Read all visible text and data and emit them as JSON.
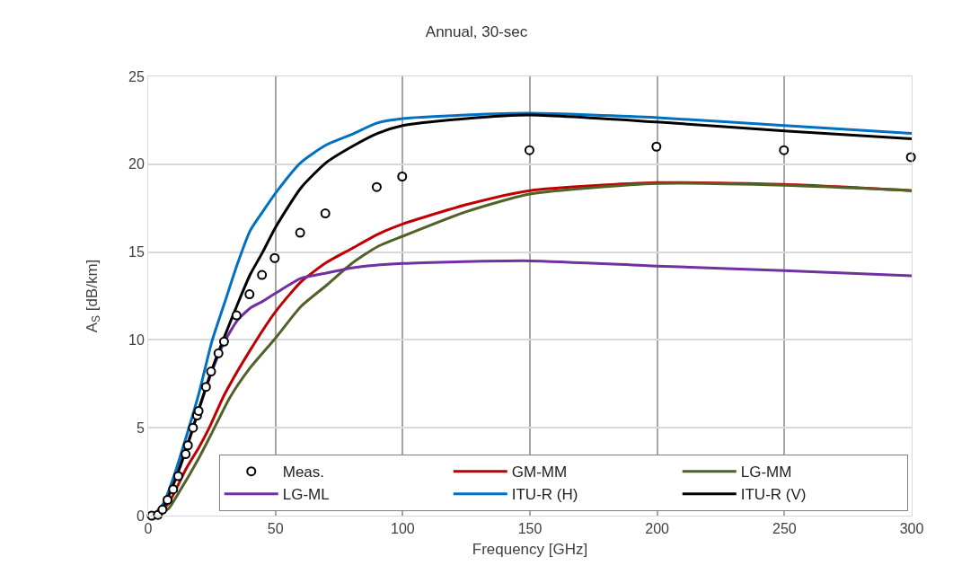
{
  "chart_data": {
    "type": "line",
    "title": "Annual, 30-sec",
    "xlabel": "Frequency [GHz]",
    "ylabel": "A$_{S}$ [dB/km]",
    "xlim": [
      0,
      300
    ],
    "ylim": [
      0,
      25
    ],
    "xticks": [
      0,
      50,
      100,
      150,
      200,
      250,
      300
    ],
    "yticks": [
      0,
      5,
      10,
      15,
      20,
      25
    ],
    "grid": true,
    "legend": "bottom right",
    "series": [
      {
        "name": "Meas.",
        "type": "scatter",
        "marker": "circle",
        "color": "#000000",
        "x": [
          1.4,
          3.8,
          5.6,
          7.6,
          9.8,
          11.8,
          14.7,
          15.6,
          17.6,
          19.2,
          19.8,
          22.7,
          24.7,
          27.6,
          29.8,
          34.7,
          39.8,
          44.7,
          49.7,
          59.7,
          69.6,
          89.8,
          99.8,
          149.8,
          199.7,
          249.8,
          299.7
        ],
        "values": [
          0,
          0.04,
          0.34,
          0.9,
          1.5,
          2.25,
          3.5,
          4.0,
          5.0,
          5.7,
          5.96,
          7.33,
          8.2,
          9.24,
          9.9,
          11.4,
          12.6,
          13.7,
          14.66,
          16.1,
          17.2,
          18.7,
          19.3,
          20.8,
          21.0,
          20.8,
          20.4
        ]
      },
      {
        "name": "GM-MM",
        "color": "#c00000",
        "x": [
          3,
          8,
          15,
          20,
          24,
          30,
          40,
          50,
          60,
          70,
          80,
          90,
          100,
          125,
          150,
          200,
          250,
          300
        ],
        "values": [
          0,
          0.7,
          2.7,
          3.9,
          5,
          6.9,
          9.4,
          11.6,
          13.3,
          14.4,
          15.2,
          16,
          16.6,
          17.7,
          18.5,
          18.95,
          18.85,
          18.5
        ]
      },
      {
        "name": "LG-MM",
        "color": "#4f6228",
        "x": [
          3,
          8,
          12,
          20,
          25,
          32,
          40,
          50,
          60,
          70,
          80,
          90,
          100,
          125,
          150,
          200,
          250,
          300
        ],
        "values": [
          0,
          0.4,
          1.3,
          3.3,
          4.7,
          6.7,
          8.4,
          10.1,
          11.9,
          13.1,
          14.35,
          15.3,
          15.9,
          17.3,
          18.3,
          18.9,
          18.8,
          18.5
        ]
      },
      {
        "name": "LG-ML",
        "color": "#7030a0",
        "x": [
          10,
          15,
          20,
          25,
          30,
          35,
          40,
          45,
          50,
          60,
          70,
          80,
          100,
          150,
          200,
          250,
          300
        ],
        "values": [
          1.9,
          3.9,
          6.1,
          8.2,
          9.9,
          11.1,
          11.8,
          12.2,
          12.65,
          13.5,
          13.8,
          14.1,
          14.35,
          14.5,
          14.2,
          13.95,
          13.65
        ]
      },
      {
        "name": "ITU-R (H)",
        "color": "#0070c0",
        "x": [
          2,
          6,
          10,
          16,
          20,
          25,
          30,
          35,
          40,
          45,
          50,
          60,
          70,
          80,
          90,
          100,
          125,
          150,
          200,
          250,
          300
        ],
        "values": [
          0,
          0.7,
          2.2,
          5,
          7,
          9.9,
          12.1,
          14.3,
          16.2,
          17.3,
          18.35,
          20.1,
          21.1,
          21.7,
          22.35,
          22.6,
          22.8,
          22.9,
          22.65,
          22.2,
          21.75
        ]
      },
      {
        "name": "ITU-R (V)",
        "color": "#000000",
        "x": [
          3,
          6,
          10,
          15,
          20,
          25,
          30,
          35,
          40,
          45,
          50,
          60,
          70,
          80,
          90,
          100,
          125,
          150,
          200,
          250,
          300
        ],
        "values": [
          0,
          0.5,
          1.8,
          3.8,
          6.1,
          8.3,
          10.2,
          12,
          13.7,
          15,
          16.4,
          18.65,
          20.1,
          21,
          21.75,
          22.2,
          22.6,
          22.8,
          22.4,
          21.9,
          21.45
        ]
      }
    ]
  }
}
